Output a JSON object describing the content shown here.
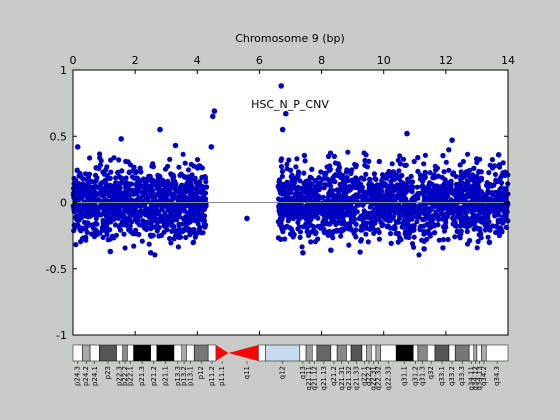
{
  "chart_data": {
    "type": "scatter",
    "title": "Chromosome 9 (bp)",
    "annotation": "HSC_N_P_CNV",
    "xlim": [
      0,
      14
    ],
    "ylim": [
      -1,
      1
    ],
    "x_ticks": [
      0,
      2,
      4,
      6,
      8,
      10,
      12,
      14
    ],
    "y_ticks": [
      -1,
      -0.5,
      0,
      0.5,
      1
    ],
    "y_tick_labels": [
      "-1",
      "-0.5",
      "0",
      "0.5",
      "1"
    ],
    "grid": false,
    "marker_color": "#0000c0",
    "baseline": 0,
    "dense_regions": [
      {
        "x": [
          0.0,
          4.3
        ],
        "y": [
          -0.25,
          0.25
        ]
      },
      {
        "x": [
          6.6,
          14.0
        ],
        "y": [
          -0.25,
          0.25
        ]
      }
    ],
    "outliers": [
      {
        "x": 4.55,
        "y": 0.69
      },
      {
        "x": 4.5,
        "y": 0.65
      },
      {
        "x": 6.7,
        "y": 0.88
      },
      {
        "x": 6.85,
        "y": 0.67
      },
      {
        "x": 5.6,
        "y": -0.12
      },
      {
        "x": 2.8,
        "y": 0.55
      },
      {
        "x": 1.55,
        "y": 0.48
      },
      {
        "x": 10.75,
        "y": 0.52
      },
      {
        "x": 12.2,
        "y": 0.47
      },
      {
        "x": 3.3,
        "y": 0.43
      },
      {
        "x": 0.15,
        "y": 0.42
      },
      {
        "x": 13.7,
        "y": 0.36
      },
      {
        "x": 6.75,
        "y": 0.55
      },
      {
        "x": 4.45,
        "y": 0.42
      },
      {
        "x": 7.4,
        "y": -0.38
      },
      {
        "x": 8.3,
        "y": -0.36
      },
      {
        "x": 2.5,
        "y": -0.38
      },
      {
        "x": 1.2,
        "y": -0.37
      },
      {
        "x": 11.3,
        "y": -0.35
      },
      {
        "x": 13.4,
        "y": -0.3
      }
    ],
    "ideogram_bands": [
      {
        "name": "p24.3",
        "start": 0.0,
        "end": 0.3,
        "color": "#ffffff"
      },
      {
        "name": "p24.2",
        "start": 0.3,
        "end": 0.55,
        "color": "#aaaaaa"
      },
      {
        "name": "p24.1",
        "start": 0.55,
        "end": 0.85,
        "color": "#ffffff"
      },
      {
        "name": "p23",
        "start": 0.85,
        "end": 1.4,
        "color": "#555555"
      },
      {
        "name": "p22.3",
        "start": 1.4,
        "end": 1.6,
        "color": "#ffffff"
      },
      {
        "name": "p22.2",
        "start": 1.6,
        "end": 1.75,
        "color": "#888888"
      },
      {
        "name": "p22.1",
        "start": 1.75,
        "end": 1.95,
        "color": "#ffffff"
      },
      {
        "name": "p21.3",
        "start": 1.95,
        "end": 2.5,
        "color": "#000000"
      },
      {
        "name": "p21.2",
        "start": 2.5,
        "end": 2.7,
        "color": "#ffffff"
      },
      {
        "name": "p21.1",
        "start": 2.7,
        "end": 3.25,
        "color": "#000000"
      },
      {
        "name": "p13.3",
        "start": 3.25,
        "end": 3.5,
        "color": "#ffffff"
      },
      {
        "name": "p13.2",
        "start": 3.5,
        "end": 3.65,
        "color": "#aaaaaa"
      },
      {
        "name": "p13.1",
        "start": 3.65,
        "end": 3.9,
        "color": "#ffffff"
      },
      {
        "name": "p12",
        "start": 3.9,
        "end": 4.35,
        "color": "#777777"
      },
      {
        "name": "p11.2",
        "start": 4.35,
        "end": 4.6,
        "color": "#ffffff"
      },
      {
        "name": "p11.1",
        "start": 4.6,
        "end": 5.0,
        "color": "#ff0000"
      },
      {
        "name": "q11",
        "start": 5.0,
        "end": 6.2,
        "color": "#ff0000"
      },
      {
        "name": "q12",
        "start": 6.2,
        "end": 7.3,
        "color": "#c8dcf0"
      },
      {
        "name": "q13",
        "start": 7.3,
        "end": 7.5,
        "color": "#ffffff"
      },
      {
        "name": "q21.11",
        "start": 7.5,
        "end": 7.7,
        "color": "#999999"
      },
      {
        "name": "q21.12",
        "start": 7.7,
        "end": 7.85,
        "color": "#ffffff"
      },
      {
        "name": "q21.13",
        "start": 7.85,
        "end": 8.3,
        "color": "#666666"
      },
      {
        "name": "q21.2",
        "start": 8.3,
        "end": 8.5,
        "color": "#ffffff"
      },
      {
        "name": "q21.31",
        "start": 8.5,
        "end": 8.8,
        "color": "#888888"
      },
      {
        "name": "q21.32",
        "start": 8.8,
        "end": 8.95,
        "color": "#ffffff"
      },
      {
        "name": "q21.33",
        "start": 8.95,
        "end": 9.3,
        "color": "#555555"
      },
      {
        "name": "q22.1",
        "start": 9.3,
        "end": 9.45,
        "color": "#ffffff"
      },
      {
        "name": "q22.2",
        "start": 9.45,
        "end": 9.6,
        "color": "#aaaaaa"
      },
      {
        "name": "q22.31",
        "start": 9.6,
        "end": 9.75,
        "color": "#ffffff"
      },
      {
        "name": "q22.32",
        "start": 9.75,
        "end": 9.9,
        "color": "#aaaaaa"
      },
      {
        "name": "q22.33",
        "start": 9.9,
        "end": 10.4,
        "color": "#ffffff"
      },
      {
        "name": "q31.1",
        "start": 10.4,
        "end": 10.95,
        "color": "#000000"
      },
      {
        "name": "q31.2",
        "start": 10.95,
        "end": 11.1,
        "color": "#ffffff"
      },
      {
        "name": "q31.3",
        "start": 11.1,
        "end": 11.4,
        "color": "#888888"
      },
      {
        "name": "q32",
        "start": 11.4,
        "end": 11.65,
        "color": "#ffffff"
      },
      {
        "name": "q33.1",
        "start": 11.65,
        "end": 12.1,
        "color": "#555555"
      },
      {
        "name": "q33.2",
        "start": 12.1,
        "end": 12.3,
        "color": "#ffffff"
      },
      {
        "name": "q33.3",
        "start": 12.3,
        "end": 12.75,
        "color": "#777777"
      },
      {
        "name": "q34.11",
        "start": 12.75,
        "end": 12.9,
        "color": "#ffffff"
      },
      {
        "name": "q34.12",
        "start": 12.9,
        "end": 13.0,
        "color": "#aaaaaa"
      },
      {
        "name": "q34.13",
        "start": 13.0,
        "end": 13.15,
        "color": "#ffffff"
      },
      {
        "name": "q34.2",
        "start": 13.15,
        "end": 13.3,
        "color": "#aaaaaa"
      },
      {
        "name": "q34.3",
        "start": 13.3,
        "end": 14.0,
        "color": "#ffffff"
      }
    ]
  }
}
